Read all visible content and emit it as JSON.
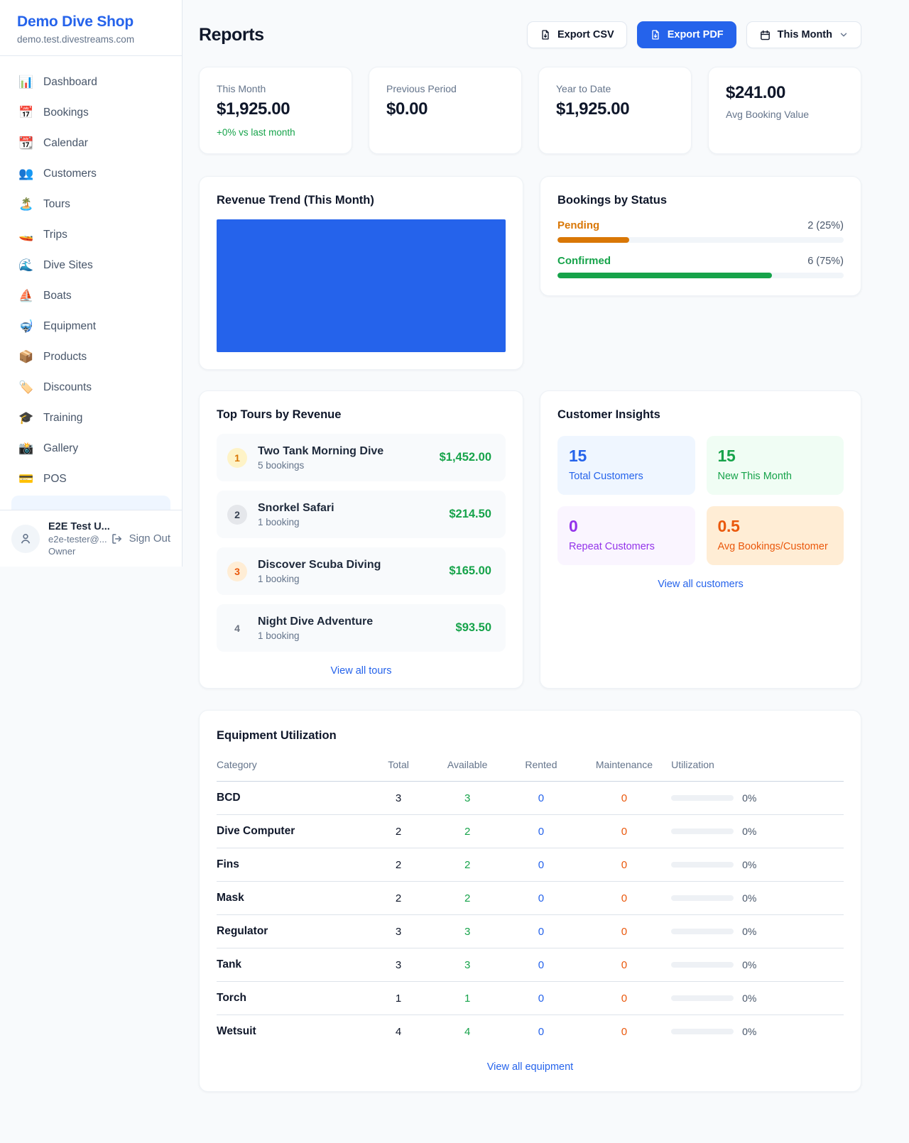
{
  "accent_color": "#2563eb",
  "sidebar": {
    "brand": {
      "title": "Demo Dive Shop",
      "domain": "demo.test.divestreams.com"
    },
    "nav": [
      {
        "icon": "📊",
        "label": "Dashboard"
      },
      {
        "icon": "📅",
        "label": "Bookings"
      },
      {
        "icon": "📆",
        "label": "Calendar"
      },
      {
        "icon": "👥",
        "label": "Customers"
      },
      {
        "icon": "🏝️",
        "label": "Tours"
      },
      {
        "icon": "🚤",
        "label": "Trips"
      },
      {
        "icon": "🌊",
        "label": "Dive Sites"
      },
      {
        "icon": "⛵",
        "label": "Boats"
      },
      {
        "icon": "🤿",
        "label": "Equipment"
      },
      {
        "icon": "📦",
        "label": "Products"
      },
      {
        "icon": "🏷️",
        "label": "Discounts"
      },
      {
        "icon": "🎓",
        "label": "Training"
      },
      {
        "icon": "📸",
        "label": "Gallery"
      },
      {
        "icon": "💳",
        "label": "POS"
      }
    ],
    "user": {
      "name": "E2E Test U...",
      "email": "e2e-tester@...",
      "role": "Owner",
      "signout_label": "Sign Out"
    }
  },
  "header": {
    "title": "Reports",
    "export_csv_label": "Export CSV",
    "export_pdf_label": "Export PDF",
    "period_label": "This Month"
  },
  "stats": [
    {
      "label": "This Month",
      "value": "$1,925.00",
      "sub": "+0% vs last month",
      "value_first": false
    },
    {
      "label": "Previous Period",
      "value": "$0.00",
      "sub": "",
      "value_first": false
    },
    {
      "label": "Year to Date",
      "value": "$1,925.00",
      "sub": "",
      "value_first": false
    },
    {
      "label": "Avg Booking Value",
      "value": "$241.00",
      "sub": "",
      "value_first": true
    }
  ],
  "revenue_trend": {
    "title": "Revenue Trend (This Month)",
    "fill_color": "#2563eb",
    "note": "chart area rendered as a single solid full-width bar"
  },
  "bookings_by_status": {
    "title": "Bookings by Status",
    "rows": [
      {
        "label": "Pending",
        "value": "2 (25%)",
        "pct": 25,
        "color": "#d97706"
      },
      {
        "label": "Confirmed",
        "value": "6 (75%)",
        "pct": 75,
        "color": "#16a34a"
      }
    ]
  },
  "top_tours": {
    "title": "Top Tours by Revenue",
    "link": "View all tours",
    "items": [
      {
        "rank": "1",
        "name": "Two Tank Morning Dive",
        "sub": "5 bookings",
        "price": "$1,452.00",
        "badge_fg": "#d97706",
        "badge_bg": "#fef3c7"
      },
      {
        "rank": "2",
        "name": "Snorkel Safari",
        "sub": "1 booking",
        "price": "$214.50",
        "badge_fg": "#374151",
        "badge_bg": "#e5e7eb"
      },
      {
        "rank": "3",
        "name": "Discover Scuba Diving",
        "sub": "1 booking",
        "price": "$165.00",
        "badge_fg": "#ea580c",
        "badge_bg": "#ffedd5"
      },
      {
        "rank": "4",
        "name": "Night Dive Adventure",
        "sub": "1 booking",
        "price": "$93.50",
        "badge_fg": "#6b7280",
        "badge_bg": "transparent"
      }
    ]
  },
  "customer_insights": {
    "title": "Customer Insights",
    "link": "View all customers",
    "tiles": [
      {
        "value": "15",
        "label": "Total Customers",
        "fg": "#2563eb",
        "bg": "#eff6ff"
      },
      {
        "value": "15",
        "label": "New This Month",
        "fg": "#16a34a",
        "bg": "#f0fdf4"
      },
      {
        "value": "0",
        "label": "Repeat Customers",
        "fg": "#9333ea",
        "bg": "#faf5ff"
      },
      {
        "value": "0.5",
        "label": "Avg Bookings/Customer",
        "fg": "#ea580c",
        "bg": "#ffedd5"
      }
    ]
  },
  "equipment": {
    "title": "Equipment Utilization",
    "link": "View all equipment",
    "columns": [
      "Category",
      "Total",
      "Available",
      "Rented",
      "Maintenance",
      "Utilization"
    ],
    "rows": [
      {
        "category": "BCD",
        "total": "3",
        "available": "3",
        "rented": "0",
        "maintenance": "0",
        "utilization": "0%"
      },
      {
        "category": "Dive Computer",
        "total": "2",
        "available": "2",
        "rented": "0",
        "maintenance": "0",
        "utilization": "0%"
      },
      {
        "category": "Fins",
        "total": "2",
        "available": "2",
        "rented": "0",
        "maintenance": "0",
        "utilization": "0%"
      },
      {
        "category": "Mask",
        "total": "2",
        "available": "2",
        "rented": "0",
        "maintenance": "0",
        "utilization": "0%"
      },
      {
        "category": "Regulator",
        "total": "3",
        "available": "3",
        "rented": "0",
        "maintenance": "0",
        "utilization": "0%"
      },
      {
        "category": "Tank",
        "total": "3",
        "available": "3",
        "rented": "0",
        "maintenance": "0",
        "utilization": "0%"
      },
      {
        "category": "Torch",
        "total": "1",
        "available": "1",
        "rented": "0",
        "maintenance": "0",
        "utilization": "0%"
      },
      {
        "category": "Wetsuit",
        "total": "4",
        "available": "4",
        "rented": "0",
        "maintenance": "0",
        "utilization": "0%"
      }
    ]
  }
}
